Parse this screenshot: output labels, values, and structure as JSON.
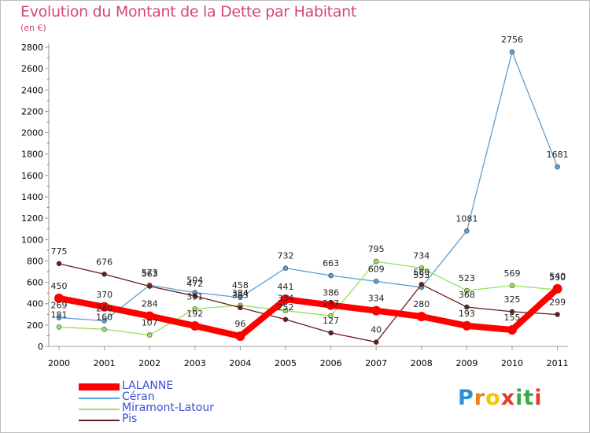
{
  "header": {
    "title": "Evolution du Montant de la Dette par Habitant",
    "subtitle": "(en €)"
  },
  "colors": {
    "title": "#d6437f",
    "LALANNE": "#ff0000",
    "Ceran": "#5d9fd3",
    "Miramont": "#99e05c",
    "Pis": "#6b1c1c",
    "legend_text": "#3a4fd6"
  },
  "chart_data": {
    "type": "line",
    "title": "Evolution du Montant de la Dette par Habitant",
    "subtitle": "(en €)",
    "xlabel": "",
    "ylabel": "",
    "x": [
      "2000",
      "2001",
      "2002",
      "2003",
      "2004",
      "2005",
      "2006",
      "2007",
      "2008",
      "2009",
      "2010",
      "2011"
    ],
    "ylim": [
      0,
      2800
    ],
    "yticks": [
      "0",
      "200",
      "400",
      "600",
      "800",
      "1000",
      "1200",
      "1400",
      "1600",
      "1800",
      "2000",
      "2200",
      "2400",
      "2600",
      "2800"
    ],
    "grid": false,
    "legend": "bottom-left",
    "series": [
      {
        "name": "LALANNE",
        "color": "#ff0000",
        "values": [
          450,
          370,
          284,
          192,
          96,
          441,
          386,
          334,
          280,
          193,
          155,
          540
        ]
      },
      {
        "name": "Céran",
        "color": "#5d9fd3",
        "values": [
          269,
          240,
          573,
          504,
          458,
          732,
          663,
          609,
          553,
          1081,
          2756,
          1681
        ]
      },
      {
        "name": "Miramont-Latour",
        "color": "#99e05c",
        "values": [
          181,
          160,
          107,
          351,
          384,
          334,
          287,
          795,
          734,
          523,
          569,
          530
        ]
      },
      {
        "name": "Pis",
        "color": "#6b1c1c",
        "values": [
          775,
          676,
          563,
          472,
          363,
          252,
          127,
          40,
          580,
          368,
          325,
          299
        ]
      }
    ]
  },
  "legend": {
    "items": [
      {
        "label": "LALANNE"
      },
      {
        "label": "Céran"
      },
      {
        "label": "Miramont-Latour"
      },
      {
        "label": "Pis"
      }
    ]
  },
  "logo": {
    "text": "Proxiti",
    "letters": [
      "P",
      "r",
      "o",
      "x",
      "i",
      "t",
      "i"
    ],
    "letter_colors": [
      "#2e8fd6",
      "#f07d1b",
      "#f5c400",
      "#e63a2e",
      "#3aa845",
      "#3aa845",
      "#e63a2e"
    ]
  }
}
